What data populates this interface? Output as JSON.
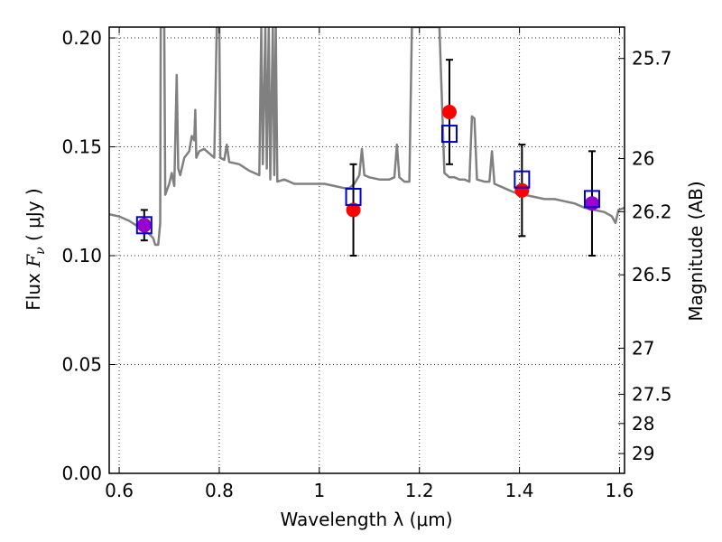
{
  "chart_data": {
    "type": "scatter",
    "title": "",
    "xlabel": "Wavelength  λ (μm)",
    "ylabel_parts": [
      "Flux  ",
      "F",
      "ν",
      "  ( μJy )"
    ],
    "ylabel_right": "Magnitude (AB)",
    "xlim": [
      0.58,
      1.61
    ],
    "ylim": [
      0.0,
      0.205
    ],
    "grid": true,
    "x_ticks": [
      0.6,
      0.8,
      1.0,
      1.2,
      1.4,
      1.6
    ],
    "x_tick_labels": [
      "0.6",
      "0.8",
      "1",
      "1.2",
      "1.4",
      "1.6"
    ],
    "y_ticks": [
      0.0,
      0.05,
      0.1,
      0.15,
      0.2
    ],
    "y_tick_labels": [
      "0.00",
      "0.05",
      "0.10",
      "0.15",
      "0.20"
    ],
    "right_ticks": [
      {
        "label": "25.7",
        "flux": 0.1906
      },
      {
        "label": "26",
        "flux": 0.1446
      },
      {
        "label": "26.2",
        "flux": 0.1202
      },
      {
        "label": "26.5",
        "flux": 0.0912
      },
      {
        "label": "27",
        "flux": 0.0575
      },
      {
        "label": "27.5",
        "flux": 0.0363
      },
      {
        "label": "28",
        "flux": 0.0229
      },
      {
        "label": "29",
        "flux": 0.0091
      }
    ],
    "colors": {
      "spectrum": "#808080",
      "observed": "#ff0000",
      "model": "#0000cc",
      "overlap": "#9900cc",
      "errorbar": "#000000"
    },
    "series": [
      {
        "kind": "line",
        "points": [
          [
            0.58,
            0.119
          ],
          [
            0.6,
            0.118
          ],
          [
            0.62,
            0.116
          ],
          [
            0.64,
            0.113
          ],
          [
            0.66,
            0.11
          ],
          [
            0.668,
            0.108
          ],
          [
            0.672,
            0.105
          ],
          [
            0.678,
            0.105
          ],
          [
            0.682,
            0.115
          ],
          [
            0.683,
            0.205
          ],
          [
            0.69,
            0.205
          ],
          [
            0.692,
            0.128
          ],
          [
            0.7,
            0.133
          ],
          [
            0.705,
            0.138
          ],
          [
            0.71,
            0.132
          ],
          [
            0.715,
            0.183
          ],
          [
            0.718,
            0.14
          ],
          [
            0.722,
            0.137
          ],
          [
            0.73,
            0.145
          ],
          [
            0.74,
            0.148
          ],
          [
            0.745,
            0.155
          ],
          [
            0.75,
            0.153
          ],
          [
            0.752,
            0.167
          ],
          [
            0.754,
            0.145
          ],
          [
            0.76,
            0.148
          ],
          [
            0.77,
            0.149
          ],
          [
            0.78,
            0.147
          ],
          [
            0.79,
            0.145
          ],
          [
            0.795,
            0.205
          ],
          [
            0.8,
            0.205
          ],
          [
            0.802,
            0.145
          ],
          [
            0.81,
            0.144
          ],
          [
            0.815,
            0.151
          ],
          [
            0.82,
            0.143
          ],
          [
            0.84,
            0.142
          ],
          [
            0.86,
            0.139
          ],
          [
            0.88,
            0.137
          ],
          [
            0.884,
            0.205
          ],
          [
            0.887,
            0.142
          ],
          [
            0.892,
            0.205
          ],
          [
            0.895,
            0.14
          ],
          [
            0.899,
            0.205
          ],
          [
            0.902,
            0.135
          ],
          [
            0.907,
            0.205
          ],
          [
            0.91,
            0.137
          ],
          [
            0.913,
            0.205
          ],
          [
            0.916,
            0.134
          ],
          [
            0.93,
            0.135
          ],
          [
            0.95,
            0.133
          ],
          [
            0.97,
            0.133
          ],
          [
            0.99,
            0.133
          ],
          [
            1.01,
            0.133
          ],
          [
            1.03,
            0.132
          ],
          [
            1.05,
            0.131
          ],
          [
            1.06,
            0.131
          ],
          [
            1.07,
            0.133
          ],
          [
            1.08,
            0.137
          ],
          [
            1.085,
            0.149
          ],
          [
            1.09,
            0.137
          ],
          [
            1.1,
            0.136
          ],
          [
            1.12,
            0.135
          ],
          [
            1.14,
            0.135
          ],
          [
            1.15,
            0.136
          ],
          [
            1.155,
            0.151
          ],
          [
            1.16,
            0.136
          ],
          [
            1.17,
            0.134
          ],
          [
            1.18,
            0.134
          ],
          [
            1.185,
            0.205
          ],
          [
            1.24,
            0.205
          ],
          [
            1.25,
            0.138
          ],
          [
            1.26,
            0.136
          ],
          [
            1.27,
            0.136
          ],
          [
            1.28,
            0.135
          ],
          [
            1.29,
            0.135
          ],
          [
            1.3,
            0.134
          ],
          [
            1.305,
            0.164
          ],
          [
            1.31,
            0.163
          ],
          [
            1.315,
            0.135
          ],
          [
            1.33,
            0.134
          ],
          [
            1.34,
            0.134
          ],
          [
            1.345,
            0.148
          ],
          [
            1.35,
            0.133
          ],
          [
            1.37,
            0.131
          ],
          [
            1.39,
            0.129
          ],
          [
            1.41,
            0.128
          ],
          [
            1.43,
            0.127
          ],
          [
            1.45,
            0.126
          ],
          [
            1.47,
            0.126
          ],
          [
            1.49,
            0.125
          ],
          [
            1.51,
            0.124
          ],
          [
            1.53,
            0.122
          ],
          [
            1.55,
            0.121
          ],
          [
            1.57,
            0.12
          ],
          [
            1.585,
            0.118
          ],
          [
            1.592,
            0.115
          ],
          [
            1.598,
            0.121
          ],
          [
            1.61,
            0.122
          ]
        ]
      },
      {
        "kind": "model",
        "points": [
          [
            0.65,
            0.114
          ],
          [
            1.068,
            0.127
          ],
          [
            1.26,
            0.156
          ],
          [
            1.405,
            0.135
          ],
          [
            1.545,
            0.126
          ]
        ]
      },
      {
        "kind": "observed",
        "points": [
          {
            "x": 0.65,
            "y": 0.114,
            "err": 0.007
          },
          {
            "x": 1.068,
            "y": 0.121,
            "err": 0.021
          },
          {
            "x": 1.26,
            "y": 0.166,
            "err": 0.024
          },
          {
            "x": 1.405,
            "y": 0.13,
            "err": 0.021
          },
          {
            "x": 1.545,
            "y": 0.124,
            "err": 0.024
          }
        ]
      }
    ]
  }
}
